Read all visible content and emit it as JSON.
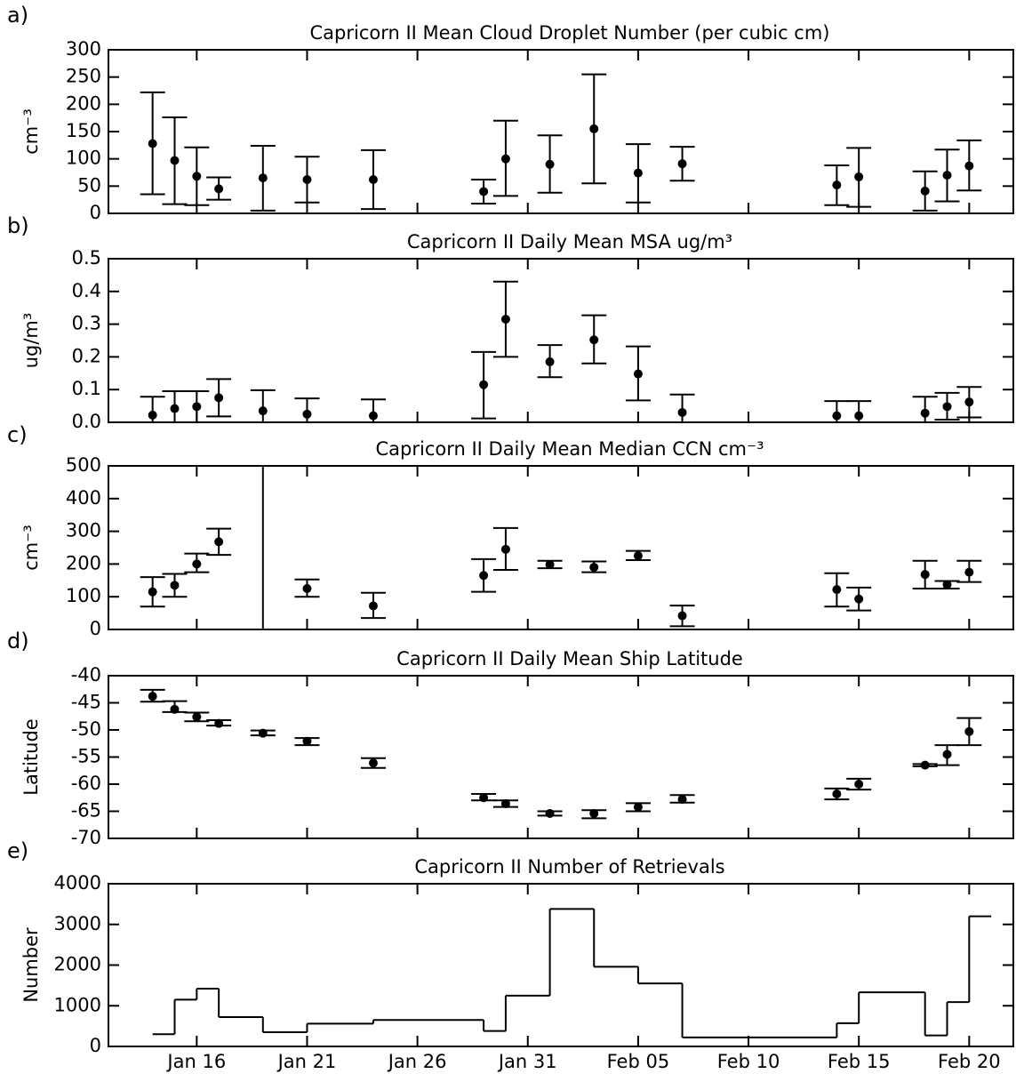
{
  "chart_data": [
    {
      "type": "errorbar",
      "panel_label": "a)",
      "title": "Capricorn II Mean Cloud Droplet Number (per cubic cm)",
      "ylabel": "cm⁻³",
      "color": "#000000",
      "x": [
        "Jan 14",
        "Jan 15",
        "Jan 16",
        "Jan 17",
        "Jan 19",
        "Jan 21",
        "Jan 24",
        "Jan 29",
        "Jan 30",
        "Feb 1",
        "Feb 3",
        "Feb 5",
        "Feb 7",
        "Feb 14",
        "Feb 15",
        "Feb 18",
        "Feb 19",
        "Feb 20"
      ],
      "values": [
        128,
        97,
        68,
        45,
        65,
        62,
        62,
        40,
        100,
        90,
        155,
        74,
        91,
        52,
        67,
        41,
        70,
        87
      ],
      "low": [
        35,
        17,
        15,
        25,
        5,
        20,
        8,
        18,
        32,
        38,
        55,
        20,
        60,
        15,
        12,
        5,
        22,
        42
      ],
      "high": [
        222,
        176,
        121,
        66,
        124,
        104,
        116,
        62,
        170,
        143,
        255,
        127,
        122,
        88,
        120,
        77,
        117,
        134
      ],
      "xlim": [
        "Jan 12",
        "Feb 22"
      ],
      "ylim": [
        0,
        300
      ],
      "yticks": [
        0,
        50,
        100,
        150,
        200,
        250,
        300
      ]
    },
    {
      "type": "errorbar",
      "panel_label": "b)",
      "title": "Capricorn II Daily Mean MSA ug/m³",
      "ylabel": "ug/m³",
      "color": "#000000",
      "x": [
        "Jan 14",
        "Jan 15",
        "Jan 16",
        "Jan 17",
        "Jan 19",
        "Jan 21",
        "Jan 24",
        "Jan 29",
        "Jan 30",
        "Feb 1",
        "Feb 3",
        "Feb 5",
        "Feb 7",
        "Feb 14",
        "Feb 15",
        "Feb 18",
        "Feb 19",
        "Feb 20"
      ],
      "values": [
        0.022,
        0.042,
        0.048,
        0.075,
        0.035,
        0.025,
        0.02,
        0.115,
        0.315,
        0.185,
        0.252,
        0.148,
        0.03,
        0.02,
        0.02,
        0.028,
        0.048,
        0.062
      ],
      "low": [
        0,
        0,
        0,
        0.018,
        0,
        0,
        0,
        0.012,
        0.2,
        0.138,
        0.18,
        0.067,
        0,
        0,
        0,
        0,
        0.008,
        0.015
      ],
      "high": [
        0.078,
        0.095,
        0.095,
        0.132,
        0.098,
        0.073,
        0.07,
        0.215,
        0.43,
        0.236,
        0.327,
        0.232,
        0.085,
        0.065,
        0.065,
        0.078,
        0.09,
        0.108
      ],
      "xlim": [
        "Jan 12",
        "Feb 22"
      ],
      "ylim": [
        0,
        0.5
      ],
      "yticks": [
        {
          "value": 0,
          "label": "0.0"
        },
        0.1,
        0.2,
        0.3,
        0.4,
        0.5
      ]
    },
    {
      "type": "errorbar",
      "panel_label": "c)",
      "title": "Capricorn II Daily Mean Median CCN cm⁻³",
      "ylabel": "cm⁻³",
      "color": "#000000",
      "x": [
        "Jan 14",
        "Jan 15",
        "Jan 16",
        "Jan 17",
        "Jan 19",
        "Jan 21",
        "Jan 24",
        "Jan 29",
        "Jan 30",
        "Feb 1",
        "Feb 3",
        "Feb 5",
        "Feb 7",
        "Feb 14",
        "Feb 15",
        "Feb 18",
        "Feb 19",
        "Feb 20"
      ],
      "values": [
        115,
        135,
        200,
        268,
        null,
        125,
        72,
        165,
        245,
        198,
        190,
        225,
        42,
        122,
        93,
        168,
        137,
        175
      ],
      "low": [
        70,
        100,
        175,
        228,
        0,
        100,
        35,
        115,
        182,
        187,
        175,
        212,
        10,
        70,
        58,
        125,
        125,
        145
      ],
      "high": [
        160,
        170,
        232,
        308,
        500,
        153,
        112,
        215,
        310,
        210,
        208,
        240,
        73,
        172,
        128,
        210,
        148,
        210
      ],
      "xlim": [
        "Jan 12",
        "Feb 22"
      ],
      "ylim": [
        0,
        500
      ],
      "yticks": [
        0,
        100,
        200,
        300,
        400,
        500
      ]
    },
    {
      "type": "errorbar",
      "panel_label": "d)",
      "title": "Capricorn II Daily Mean Ship Latitude",
      "ylabel": "Latitude",
      "color": "#000000",
      "x": [
        "Jan 14",
        "Jan 15",
        "Jan 16",
        "Jan 17",
        "Jan 19",
        "Jan 21",
        "Jan 24",
        "Jan 29",
        "Jan 30",
        "Feb 1",
        "Feb 3",
        "Feb 5",
        "Feb 7",
        "Feb 14",
        "Feb 15",
        "Feb 18",
        "Feb 19",
        "Feb 20"
      ],
      "values": [
        -43.8,
        -46.2,
        -47.6,
        -48.8,
        -50.6,
        -52.1,
        -56.1,
        -62.5,
        -63.6,
        -65.4,
        -65.4,
        -64.2,
        -62.8,
        -61.8,
        -60,
        -56.5,
        -54.5,
        -50.3
      ],
      "low": [
        -44.8,
        -46.7,
        -48.4,
        -49.2,
        -51,
        -52.8,
        -57,
        -63,
        -64.2,
        -65.8,
        -66.3,
        -65,
        -63.4,
        -62.8,
        -61,
        -56.7,
        -56.5,
        -52.8
      ],
      "high": [
        -42.6,
        -44.7,
        -46.8,
        -48.2,
        -50.1,
        -51.5,
        -55.2,
        -61.8,
        -63,
        -65,
        -64.8,
        -63.5,
        -62,
        -60.8,
        -59,
        -56.3,
        -52.8,
        -47.8
      ],
      "xlim": [
        "Jan 12",
        "Feb 22"
      ],
      "ylim": [
        -70,
        -40
      ],
      "yticks": [
        -70,
        -65,
        -60,
        -55,
        -50,
        -45,
        -40
      ]
    },
    {
      "type": "step",
      "panel_label": "e)",
      "title": "Capricorn II Number of Retrievals",
      "ylabel": "Number",
      "color": "#000000",
      "x": [
        "Jan 14",
        "Jan 15",
        "Jan 16",
        "Jan 17",
        "Jan 19",
        "Jan 21",
        "Jan 24",
        "Jan 29",
        "Jan 30",
        "Feb 1",
        "Feb 3",
        "Feb 5",
        "Feb 7",
        "Feb 14",
        "Feb 15",
        "Feb 18",
        "Feb 19",
        "Feb 20"
      ],
      "values": [
        300,
        1150,
        1420,
        720,
        350,
        560,
        650,
        380,
        1250,
        3380,
        1960,
        1550,
        220,
        570,
        1330,
        270,
        1090,
        3200
      ],
      "xlim": [
        "Jan 12",
        "Feb 22"
      ],
      "ylim": [
        0,
        4000
      ],
      "yticks": [
        0,
        1000,
        2000,
        3000,
        4000
      ],
      "xticks": [
        "Jan 16",
        "Jan 21",
        "Jan 26",
        "Jan 31",
        "Feb 05",
        "Feb 10",
        "Feb 15",
        "Feb 20"
      ]
    }
  ]
}
